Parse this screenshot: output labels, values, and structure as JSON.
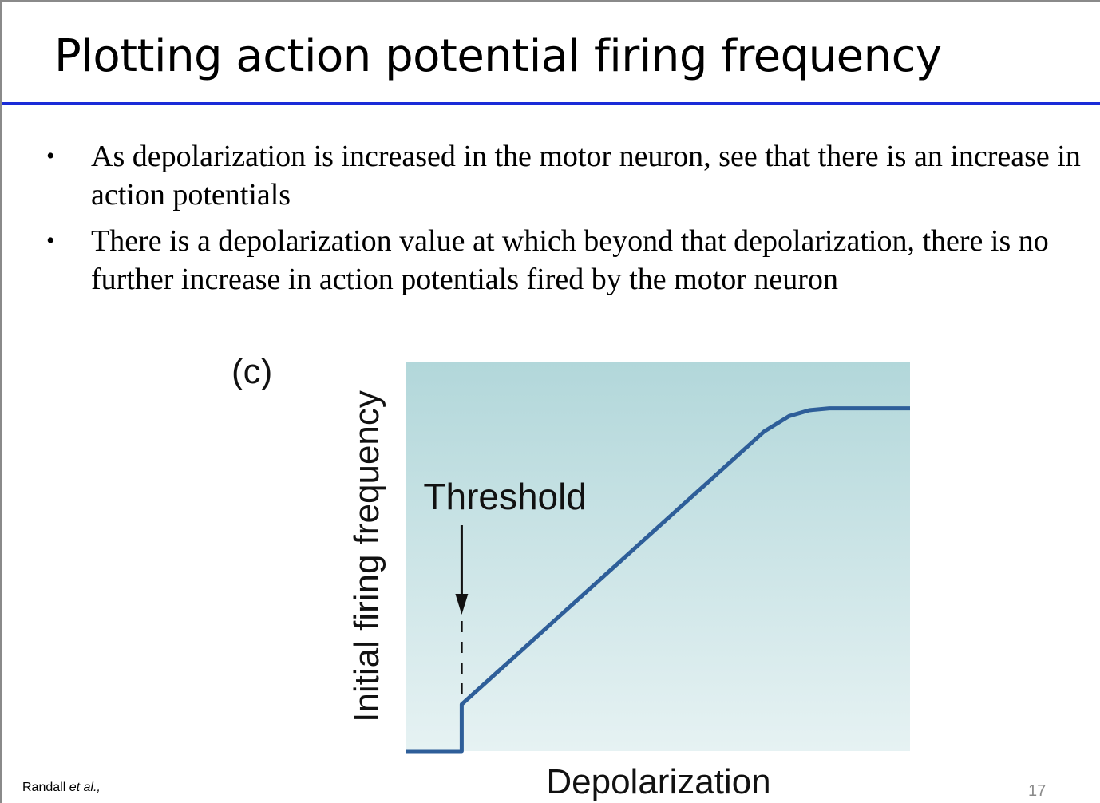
{
  "slide": {
    "title": "Plotting action potential firing frequency",
    "accent_color": "#1a2bd8",
    "bullets": [
      "As depolarization is increased in the motor neuron, see that there is an increase in action potentials",
      "There is a depolarization value at which beyond that depolarization, there is no further increase in action potentials fired by the motor neuron"
    ],
    "bullet_symbol": "•",
    "citation_author": "Randall",
    "citation_etal": "et al.,",
    "page_number": "17"
  },
  "chart_data": {
    "type": "line",
    "panel_label": "(c)",
    "title": "",
    "xlabel": "Depolarization",
    "ylabel": "Initial firing frequency",
    "annotations": [
      {
        "text": "Threshold",
        "points_to": "threshold",
        "style": "arrow with dashed drop line"
      }
    ],
    "grid": false,
    "x_ticks": false,
    "y_ticks": false,
    "xlim": [
      0,
      100
    ],
    "ylim": [
      0,
      100
    ],
    "series": [
      {
        "color": "#2e5e99",
        "x": [
          0,
          11,
          11,
          71,
          76,
          80,
          84,
          88,
          100
        ],
        "y": [
          0,
          0,
          12,
          82,
          86,
          87.5,
          88,
          88,
          88
        ]
      }
    ],
    "threshold_x": 11,
    "colors": {
      "plot_bg_top": "#b2d7da",
      "plot_bg_bottom": "#e6f2f3",
      "line": "#2e5e99",
      "annotation": "#111111"
    }
  }
}
